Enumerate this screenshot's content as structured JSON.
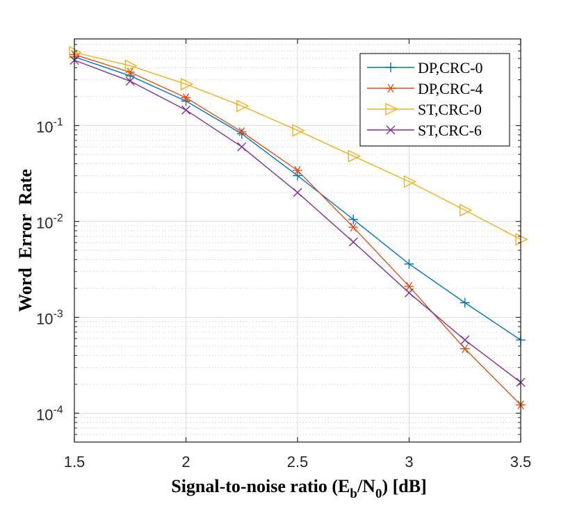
{
  "chart_data": {
    "type": "line",
    "xlabel": "Signal-to-noise ratio",
    "xlabel_eb": "E",
    "xlabel_eb_sub": "b",
    "xlabel_n0": "N",
    "xlabel_n0_sub": "0",
    "xlabel_unit": "[dB]",
    "ylabel": "Word  Error  Rate",
    "xlim": [
      1.5,
      3.5
    ],
    "ylim": [
      5e-05,
      0.8
    ],
    "yscale": "log",
    "grid": true,
    "legend_position": "top-right",
    "x_ticks": [
      {
        "value": 1.5,
        "label": "1.5"
      },
      {
        "value": 2,
        "label": "2"
      },
      {
        "value": 2.5,
        "label": "2.5"
      },
      {
        "value": 3,
        "label": "3"
      },
      {
        "value": 3.5,
        "label": "3.5"
      }
    ],
    "y_ticks": [
      {
        "exp": -1,
        "base": "10",
        "sup": "-1"
      },
      {
        "exp": -2,
        "base": "10",
        "sup": "-2"
      },
      {
        "exp": -3,
        "base": "10",
        "sup": "-3"
      },
      {
        "exp": -4,
        "base": "10",
        "sup": "-4"
      }
    ],
    "x": [
      1.5,
      1.75,
      2.0,
      2.25,
      2.5,
      2.75,
      3.0,
      3.25,
      3.5
    ],
    "series": [
      {
        "name": "DP,CRC-0",
        "color": "#0072BD",
        "marker": "plus",
        "values": [
          0.52,
          0.33,
          0.18,
          0.082,
          0.03,
          0.0105,
          0.0036,
          0.00142,
          0.00058
        ]
      },
      {
        "name": "DP,CRC-4",
        "color": "#D95319",
        "marker": "asterisk",
        "values": [
          0.55,
          0.36,
          0.195,
          0.086,
          0.034,
          0.0087,
          0.0021,
          0.00047,
          0.000122
        ]
      },
      {
        "name": "ST,CRC-0",
        "color": "#EDB120",
        "marker": "triangle-right",
        "values": [
          0.58,
          0.42,
          0.27,
          0.16,
          0.089,
          0.048,
          0.026,
          0.0131,
          0.0065
        ]
      },
      {
        "name": "ST,CRC-6",
        "color": "#7E2F8E",
        "marker": "x",
        "values": [
          0.48,
          0.29,
          0.145,
          0.06,
          0.02,
          0.0061,
          0.0018,
          0.00058,
          0.00021
        ]
      }
    ]
  }
}
